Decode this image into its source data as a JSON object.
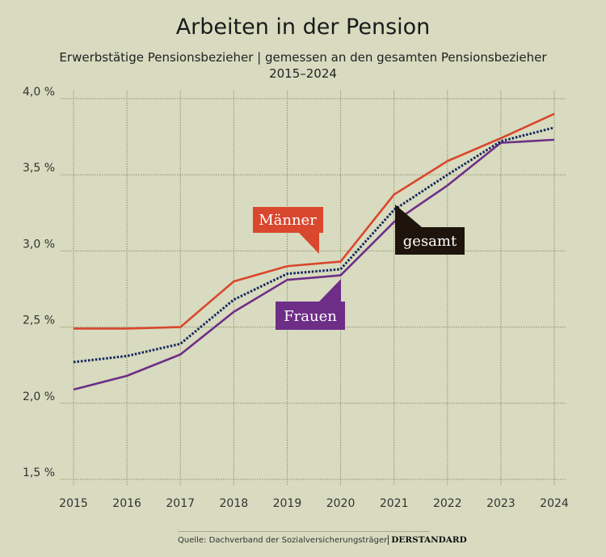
{
  "header": {
    "title": "Arbeiten in der Pension",
    "subtitle_line1": "Erwerbstätige Pensionsbezieher |  gemessen an den gesamten Pensionsbezieher",
    "subtitle_line2": "2015–2024"
  },
  "footer": {
    "source": "Quelle: Dachverband der Sozialversicherungsträger",
    "brand": "DERSTANDARD"
  },
  "chart_data": {
    "type": "line",
    "title": "Arbeiten in der Pension",
    "subtitle": "Erwerbstätige Pensionsbezieher | gemessen an den gesamten Pensionsbezieher 2015–2024",
    "x": [
      2015,
      2016,
      2017,
      2018,
      2019,
      2020,
      2021,
      2022,
      2023,
      2024
    ],
    "x_tick_labels": [
      "2015",
      "2016",
      "2017",
      "2018",
      "2019",
      "2020",
      "2021",
      "2022",
      "2023",
      "2024"
    ],
    "y_ticks": [
      1.5,
      2.0,
      2.5,
      3.0,
      3.5,
      4.0
    ],
    "y_tick_labels": [
      "1,5 %",
      "2,0 %",
      "2,5 %",
      "3,0 %",
      "3,5 %",
      "4,0 %"
    ],
    "ylim": [
      1.5,
      4.0
    ],
    "unit": "%",
    "grid": true,
    "series": [
      {
        "name": "Männer",
        "color": "#d9472e",
        "style": "solid",
        "values": [
          2.49,
          2.49,
          2.5,
          2.8,
          2.9,
          2.93,
          3.37,
          3.59,
          3.74,
          3.9
        ]
      },
      {
        "name": "gesamt",
        "color": "#14265e",
        "style": "dotted",
        "label_color": "#1e140c",
        "values": [
          2.27,
          2.31,
          2.39,
          2.68,
          2.85,
          2.88,
          3.27,
          3.5,
          3.72,
          3.81
        ]
      },
      {
        "name": "Frauen",
        "color": "#6e2e87",
        "style": "solid",
        "values": [
          2.09,
          2.18,
          2.32,
          2.6,
          2.81,
          2.84,
          3.19,
          3.43,
          3.71,
          3.73
        ]
      }
    ]
  }
}
